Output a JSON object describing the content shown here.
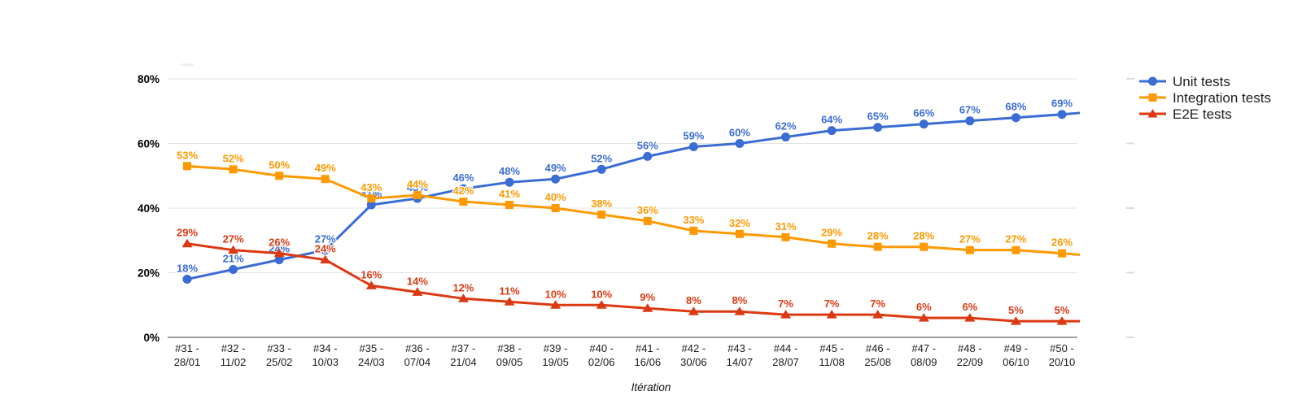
{
  "chart_data": {
    "type": "line",
    "title": "",
    "xlabel": "Itération",
    "ylabel": "",
    "ylim": [
      0,
      80
    ],
    "ytick_values": [
      0,
      20,
      40,
      60,
      80
    ],
    "ytick_labels": [
      "0%",
      "20%",
      "40%",
      "60%",
      "80%"
    ],
    "grid": true,
    "legend_position": "top-right",
    "data_label_suffix": "%",
    "categories": [
      "#31 - 28/01",
      "#32 - 11/02",
      "#33 - 25/02",
      "#34 - 10/03",
      "#35 - 24/03",
      "#36 - 07/04",
      "#37 - 21/04",
      "#38 - 09/05",
      "#39 - 19/05",
      "#40 - 02/06",
      "#41 - 16/06",
      "#42 - 30/06",
      "#43 - 14/07",
      "#44 - 28/07",
      "#45 - 11/08",
      "#46 - 25/08",
      "#47 - 08/09",
      "#48 - 22/09",
      "#49 - 06/10",
      "#50 - 20/10"
    ],
    "series": [
      {
        "name": "Unit tests",
        "marker": "circle",
        "color": "#3B6CD4",
        "values": [
          18,
          21,
          24,
          27,
          41,
          43,
          46,
          48,
          49,
          52,
          56,
          59,
          60,
          62,
          64,
          65,
          66,
          67,
          68,
          69
        ]
      },
      {
        "name": "Integration tests",
        "marker": "square",
        "color": "#FF9900",
        "values": [
          53,
          52,
          50,
          49,
          43,
          44,
          42,
          41,
          40,
          38,
          36,
          33,
          32,
          31,
          29,
          28,
          28,
          27,
          27,
          26
        ]
      },
      {
        "name": "E2E tests",
        "marker": "triangle",
        "color": "#DC3912",
        "values": [
          29,
          27,
          26,
          24,
          16,
          14,
          12,
          11,
          10,
          10,
          9,
          8,
          8,
          7,
          7,
          7,
          6,
          6,
          5,
          5
        ]
      }
    ]
  },
  "colors": {
    "background": "#FFFFFF",
    "gridline": "#E3E3E3",
    "axis_line": "#9E9E9E",
    "gridline_stub": "#DCDCDC",
    "artifact": "#EFEFEF",
    "tick_text": "#000000",
    "legend_text": "#212121"
  }
}
